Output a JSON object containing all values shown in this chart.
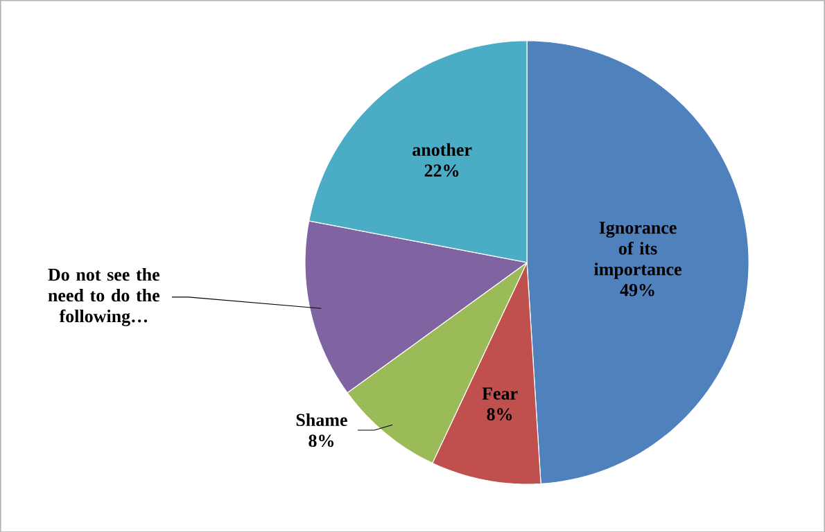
{
  "chart_data": {
    "type": "pie",
    "categories": [
      "Ignorance of its importance",
      "Fear",
      "Shame",
      "Do not see the need to do the following…",
      "another"
    ],
    "values": [
      49,
      8,
      8,
      13,
      22
    ],
    "colors": [
      "#4f81bd",
      "#c0504d",
      "#9bbb59",
      "#8064a2",
      "#4bacc6"
    ],
    "value_labels": [
      "49%",
      "8%",
      "8%",
      null,
      "22%"
    ]
  }
}
